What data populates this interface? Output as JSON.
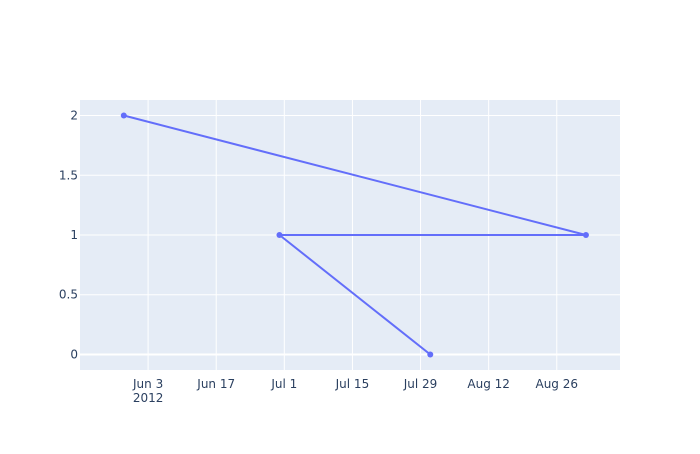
{
  "chart_data": {
    "type": "line",
    "mode": "lines+markers",
    "series": [
      {
        "x": [
          "2012-05-29",
          "2012-09-01",
          "2012-06-30",
          "2012-07-31"
        ],
        "y": [
          2,
          1,
          1,
          0
        ]
      }
    ],
    "xaxis": {
      "type": "date",
      "range": [
        "2012-05-20",
        "2012-09-08"
      ],
      "ticks": [
        {
          "date": "2012-06-03",
          "label": "Jun 3",
          "sublabel": "2012"
        },
        {
          "date": "2012-06-17",
          "label": "Jun 17",
          "sublabel": ""
        },
        {
          "date": "2012-07-01",
          "label": "Jul 1",
          "sublabel": ""
        },
        {
          "date": "2012-07-15",
          "label": "Jul 15",
          "sublabel": ""
        },
        {
          "date": "2012-07-29",
          "label": "Jul 29",
          "sublabel": ""
        },
        {
          "date": "2012-08-12",
          "label": "Aug 12",
          "sublabel": ""
        },
        {
          "date": "2012-08-26",
          "label": "Aug 26",
          "sublabel": ""
        }
      ]
    },
    "yaxis": {
      "range": [
        -0.13,
        2.13
      ],
      "ticks": [
        {
          "value": 0,
          "label": "0"
        },
        {
          "value": 0.5,
          "label": "0.5"
        },
        {
          "value": 1,
          "label": "1"
        },
        {
          "value": 1.5,
          "label": "1.5"
        },
        {
          "value": 2,
          "label": "2"
        }
      ]
    },
    "grid": true,
    "colors": {
      "line": "#636efa",
      "plot_background": "#e5ecf6",
      "grid": "#ffffff",
      "tick_text": "#2a3f5f"
    }
  }
}
